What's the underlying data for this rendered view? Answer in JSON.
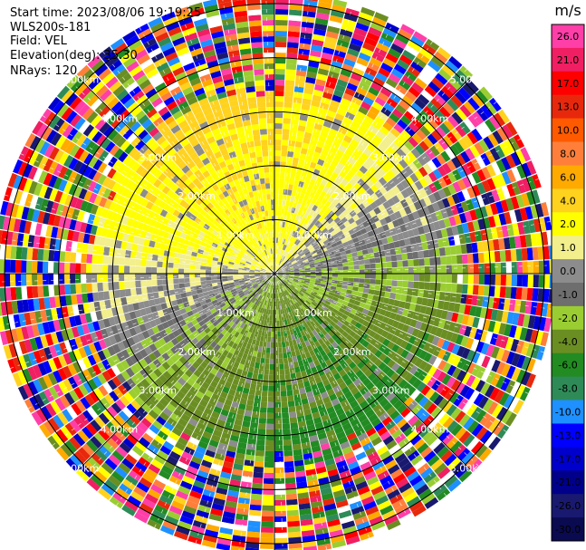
{
  "header": {
    "start_time": "Start time: 2023/08/06 19:19:25",
    "station": "WLS200s-181",
    "field": "Field: VEL",
    "elevation": "Elevation(deg): 35.30",
    "nrays": "NRays: 120"
  },
  "chart_data": {
    "type": "heatmap",
    "projection": "polar PPI",
    "field": "VEL",
    "unit": "m/s",
    "nrays": 120,
    "elevation_deg": 35.3,
    "range_rings_km": [
      1.0,
      2.0,
      3.0,
      4.0,
      5.0
    ],
    "range_ring_labels": [
      "1.00km",
      "2.00km",
      "3.00km",
      "4.00km",
      "5.00km"
    ],
    "max_range_km": 5.2,
    "colorbar": {
      "title": "m/s",
      "ticks": [
        "26.0",
        "21.0",
        "17.0",
        "13.0",
        "10.0",
        "8.0",
        "6.0",
        "4.0",
        "2.0",
        "1.0",
        "0.0",
        "-1.0",
        "-2.0",
        "-4.0",
        "-6.0",
        "-8.0",
        "-10.0",
        "-13.0",
        "-17.0",
        "-21.0",
        "-26.0",
        "-30.0"
      ],
      "colors": [
        "#ff3fa8",
        "#f01e62",
        "#ff0000",
        "#e8280c",
        "#ff5a00",
        "#ff7f3a",
        "#ffaa00",
        "#ffd21e",
        "#ffff00",
        "#f2ef8c",
        "#8c8c8c",
        "#6e6e6e",
        "#9acd32",
        "#6b8e23",
        "#228b22",
        "#2e8b57",
        "#1e90ff",
        "#0000ff",
        "#0000cd",
        "#00008b",
        "#191970",
        "#0a0a50"
      ]
    },
    "wind_pattern": {
      "near_field_max_km": 3.4,
      "positive_direction_deg": 110,
      "notes": "receding (positive) velocities to the east/south-east, approaching (negative) to the west/north-west; noisy speckle beyond ~3.4 km"
    }
  }
}
